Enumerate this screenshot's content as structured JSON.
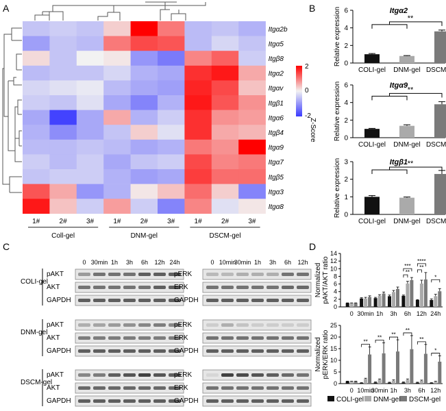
{
  "panels": {
    "A": "A",
    "B": "B",
    "C": "C",
    "D": "D"
  },
  "heatmap": {
    "genes": [
      "Itgα2b",
      "Itgα5",
      "Itgβ8",
      "Itgα2",
      "Itgαv",
      "Itgβ1",
      "Itgα6",
      "Itgβ4",
      "Itgα9",
      "Itgα7",
      "Itgβ5",
      "Itgα3",
      "Itgα8"
    ],
    "columns": [
      "1#",
      "2#",
      "3#",
      "1#",
      "2#",
      "3#",
      "1#",
      "2#",
      "3#"
    ],
    "groups": [
      "Coll-gel",
      "DNM-gel",
      "DSCM-gel"
    ],
    "zscores": [
      [
        -0.5,
        -0.4,
        -0.5,
        0.3,
        2.0,
        1.0,
        -0.6,
        -0.5,
        -0.7
      ],
      [
        -0.9,
        -0.5,
        -0.6,
        1.0,
        1.4,
        1.3,
        -0.6,
        -0.3,
        -0.5
      ],
      [
        0.2,
        -0.5,
        0.0,
        0.1,
        -1.0,
        -1.3,
        0.9,
        1.2,
        -0.4
      ],
      [
        -0.6,
        -0.5,
        -0.5,
        -0.3,
        -0.7,
        -0.8,
        1.6,
        1.8,
        0.6
      ],
      [
        -0.3,
        -0.2,
        -0.1,
        -0.6,
        -0.8,
        -0.9,
        1.7,
        1.4,
        0.4
      ],
      [
        -0.4,
        -0.5,
        -0.2,
        -0.8,
        -1.2,
        -0.7,
        1.8,
        1.3,
        0.8
      ],
      [
        -0.8,
        -1.9,
        -0.8,
        0.6,
        -0.7,
        -0.4,
        1.6,
        0.8,
        0.7
      ],
      [
        -0.7,
        -1.1,
        -0.8,
        -0.5,
        0.3,
        -0.2,
        1.6,
        0.6,
        0.5
      ],
      [
        -0.6,
        -0.6,
        -0.5,
        -0.6,
        -0.8,
        -0.7,
        1.0,
        0.8,
        2.0
      ],
      [
        -0.4,
        -0.6,
        -0.4,
        -0.8,
        -0.5,
        -0.4,
        1.4,
        0.9,
        1.0
      ],
      [
        -0.5,
        -0.4,
        -0.4,
        -0.7,
        -0.9,
        -0.8,
        1.5,
        1.1,
        1.1
      ],
      [
        1.3,
        0.6,
        -1.0,
        -0.7,
        0.1,
        0.4,
        1.1,
        0.3,
        -1.2
      ],
      [
        1.8,
        0.4,
        -0.4,
        0.7,
        -0.4,
        -1.2,
        0.9,
        -0.2,
        0.1
      ]
    ],
    "colorbar": {
      "ticks": [
        "2",
        "0",
        "-2"
      ],
      "label": "Z-Score"
    }
  },
  "chart_data": [
    {
      "type": "bar",
      "title": "Itgα2",
      "categories": [
        "COLI-gel",
        "DNM-gel",
        "DSCM-gel"
      ],
      "values": [
        1.0,
        0.8,
        3.6
      ],
      "errors": [
        0.08,
        0.05,
        0.15
      ],
      "ylabel": "Relative expression",
      "ylim": [
        0,
        6
      ],
      "yticks": [
        "0",
        "2",
        "4",
        "6"
      ],
      "significance": "**"
    },
    {
      "type": "bar",
      "title": "Itgα9",
      "categories": [
        "COLI-gel",
        "DNM-gel",
        "DSCM-gel"
      ],
      "values": [
        1.0,
        1.35,
        3.8
      ],
      "errors": [
        0.06,
        0.12,
        0.3
      ],
      "ylabel": "Relative expression",
      "ylim": [
        0,
        6
      ],
      "yticks": [
        "0",
        "2",
        "4",
        "6"
      ],
      "significance": "**"
    },
    {
      "type": "bar",
      "title": "Itgβ1",
      "categories": [
        "COLI-gel",
        "DNM-gel",
        "DSCM-gel"
      ],
      "values": [
        1.0,
        0.95,
        2.3
      ],
      "errors": [
        0.07,
        0.04,
        0.2
      ],
      "ylabel": "Relative expression",
      "ylim": [
        0,
        3
      ],
      "yticks": [
        "0",
        "1",
        "2",
        "3"
      ],
      "significance": "**"
    },
    {
      "type": "bar",
      "ylabel": "Normalized pAKT/AKT ratio",
      "ylim": [
        0,
        14
      ],
      "yticks": [
        "0",
        "2",
        "4",
        "6",
        "8",
        "10",
        "12",
        "14"
      ],
      "categories": [
        "0",
        "30min",
        "1h",
        "3h",
        "6h",
        "12h",
        "24h"
      ],
      "series": [
        {
          "name": "COLI-gel",
          "values": [
            1.0,
            2.2,
            2.3,
            2.8,
            2.9,
            1.8,
            1.8
          ],
          "errors": [
            0.05,
            0.2,
            0.2,
            0.3,
            0.2,
            0.1,
            0.3
          ]
        },
        {
          "name": "DNM-gel",
          "values": [
            1.0,
            2.2,
            2.9,
            3.9,
            6.1,
            6.1,
            2.8
          ],
          "errors": [
            0.05,
            0.3,
            0.3,
            0.4,
            0.6,
            0.9,
            0.5
          ]
        },
        {
          "name": "DSCM-gel",
          "values": [
            1.0,
            2.6,
            3.5,
            4.7,
            7.0,
            7.2,
            4.1
          ],
          "errors": [
            0.05,
            0.3,
            0.4,
            0.5,
            0.7,
            1.8,
            0.7
          ]
        }
      ],
      "annotations": [
        {
          "cat": "6h",
          "pair": "COLI-DNM",
          "label": "**"
        },
        {
          "cat": "6h",
          "pair": "COLI-DSCM",
          "label": "***"
        },
        {
          "cat": "12h",
          "pair": "COLI-DNM",
          "label": "**"
        },
        {
          "cat": "12h",
          "pair": "COLI-DSCM",
          "label": "****"
        },
        {
          "cat": "24h",
          "pair": "COLI-DSCM",
          "label": "*"
        }
      ]
    },
    {
      "type": "bar",
      "ylabel": "Normalized pERK/ERK ratio",
      "ylim": [
        0,
        25
      ],
      "yticks": [
        "0",
        "5",
        "10",
        "15",
        "20",
        "25"
      ],
      "categories": [
        "0",
        "10min",
        "30min",
        "1h",
        "3h",
        "6h",
        "12h"
      ],
      "series": [
        {
          "name": "COLI-gel",
          "values": [
            1.0,
            0.3,
            0.5,
            0.4,
            0.5,
            0.4,
            0.3
          ],
          "errors": [
            0.05,
            0.1,
            0.2,
            0.2,
            0.2,
            0.2,
            0.1
          ]
        },
        {
          "name": "DNM-gel",
          "values": [
            1.0,
            2.0,
            1.7,
            1.3,
            1.6,
            1.2,
            0.8
          ],
          "errors": [
            0.05,
            0.3,
            0.3,
            0.3,
            0.4,
            0.3,
            0.2
          ]
        },
        {
          "name": "DSCM-gel",
          "values": [
            1.0,
            12.5,
            13.0,
            13.8,
            14.8,
            12.8,
            9.4
          ],
          "errors": [
            0.05,
            3.2,
            4.5,
            5.0,
            5.8,
            4.0,
            2.5
          ]
        }
      ],
      "annotations": [
        {
          "cat": "10min",
          "label": "**"
        },
        {
          "cat": "30min",
          "label": "**"
        },
        {
          "cat": "1h",
          "label": "**"
        },
        {
          "cat": "3h",
          "label": "**"
        },
        {
          "cat": "6h",
          "label": "**"
        },
        {
          "cat": "12h",
          "label": "*"
        }
      ]
    }
  ],
  "legend": [
    "COLI-gel",
    "DNM-gel",
    "DSCM-gel"
  ],
  "blots": {
    "akt_times": [
      "0",
      "30min",
      "1h",
      "3h",
      "6h",
      "12h",
      "24h"
    ],
    "erk_times": [
      "0",
      "10min",
      "30min",
      "1h",
      "3h",
      "6h",
      "12h"
    ],
    "groups": [
      {
        "name": "COLI-gel",
        "left": [
          "pAKT",
          "AKT",
          "GAPDH"
        ],
        "right": [
          "pERK",
          "ERK",
          "GAPDH"
        ]
      },
      {
        "name": "DNM-gel",
        "left": [
          "pAKT",
          "AKT",
          "GAPDH"
        ],
        "right": [
          "pERK",
          "ERK",
          "GAPDH"
        ]
      },
      {
        "name": "DSCM-gel",
        "left": [
          "pAKT",
          "AKT",
          "GAPDH"
        ],
        "right": [
          "pERK",
          "ERK",
          "GAPDH"
        ]
      }
    ],
    "intensities": {
      "COLI-gel": {
        "pAKT": [
          0.4,
          0.6,
          0.6,
          0.6,
          0.7,
          0.7,
          0.7
        ],
        "AKT": [
          0.6,
          0.6,
          0.6,
          0.6,
          0.6,
          0.7,
          0.7
        ],
        "pERK": [
          0.25,
          0.25,
          0.3,
          0.3,
          0.3,
          0.6,
          0.6
        ],
        "ERK": [
          0.6,
          0.6,
          0.6,
          0.6,
          0.6,
          0.65,
          0.65
        ]
      },
      "DNM-gel": {
        "pAKT": [
          0.3,
          0.35,
          0.4,
          0.45,
          0.5,
          0.55,
          0.5
        ],
        "AKT": [
          0.55,
          0.55,
          0.55,
          0.55,
          0.55,
          0.55,
          0.55
        ],
        "pERK": [
          0.15,
          0.3,
          0.2,
          0.15,
          0.15,
          0.15,
          0.15
        ],
        "ERK": [
          0.6,
          0.6,
          0.6,
          0.6,
          0.6,
          0.6,
          0.6
        ]
      },
      "DSCM-gel": {
        "pAKT": [
          0.5,
          0.55,
          0.7,
          0.75,
          0.85,
          0.75,
          0.7
        ],
        "AKT": [
          0.65,
          0.65,
          0.65,
          0.65,
          0.65,
          0.65,
          0.65
        ],
        "pERK": [
          0.1,
          0.85,
          0.8,
          0.75,
          0.7,
          0.65,
          0.6
        ],
        "ERK": [
          0.6,
          0.6,
          0.6,
          0.6,
          0.6,
          0.6,
          0.6
        ]
      }
    }
  },
  "colors": {
    "coli": "#111111",
    "dnm": "#aaaaaa",
    "dscm": "#7a7a7a",
    "high": "#ff0000",
    "low": "#3a3aff",
    "mid": "#f2f2f2"
  }
}
